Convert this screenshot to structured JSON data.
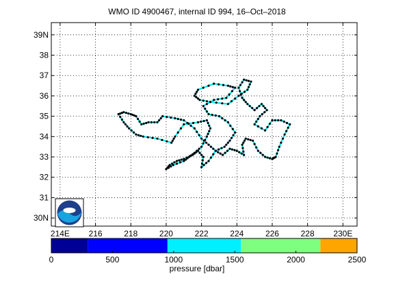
{
  "title": "WMO ID 4900467, internal ID 994, 16–Oct–2018",
  "map": {
    "lon_ticks": [
      "214E",
      "216",
      "218",
      "220",
      "222",
      "224",
      "226",
      "228",
      "230E"
    ],
    "lat_ticks": [
      "39N",
      "38",
      "37",
      "36",
      "35",
      "34",
      "33",
      "32",
      "31",
      "30N"
    ],
    "lon_range": [
      213.5,
      230.8
    ],
    "lat_range": [
      29.6,
      39.6
    ],
    "grid": true,
    "track_color": "#00e5ee",
    "point_color": "#000000",
    "logo": "noaa-logo"
  },
  "colorbar": {
    "label": "pressure [dbar]",
    "ticks": [
      "0",
      "500",
      "1000",
      "1500",
      "2000",
      "2500"
    ],
    "range": [
      0,
      2500
    ],
    "bands": [
      {
        "from": 0,
        "to": 300,
        "color": "#000096"
      },
      {
        "from": 300,
        "to": 950,
        "color": "#0000ff"
      },
      {
        "from": 950,
        "to": 1550,
        "color": "#00f0ff"
      },
      {
        "from": 1550,
        "to": 2200,
        "color": "#7fff7f"
      },
      {
        "from": 2200,
        "to": 2500,
        "color": "#ffa500"
      }
    ]
  },
  "chart_data": {
    "type": "scatter",
    "x_axis": "longitude (E)",
    "y_axis": "latitude (N)",
    "series": [
      {
        "points": [
          [
            218.7,
            34.0
          ],
          [
            219.5,
            33.9
          ],
          [
            220.3,
            33.7
          ],
          [
            220.5,
            34.0
          ],
          [
            221.0,
            34.6
          ],
          [
            221.8,
            34.7
          ],
          [
            222.3,
            34.8
          ],
          [
            222.5,
            34.4
          ],
          [
            222.3,
            34.0
          ],
          [
            222.0,
            33.5
          ],
          [
            221.6,
            33.2
          ],
          [
            221.3,
            33.0
          ],
          [
            221.0,
            32.8
          ],
          [
            220.4,
            32.6
          ],
          [
            220.0,
            32.4
          ],
          [
            220.2,
            32.6
          ],
          [
            220.6,
            32.8
          ],
          [
            221.0,
            32.9
          ],
          [
            221.5,
            33.1
          ],
          [
            221.8,
            33.3
          ],
          [
            222.1,
            33.0
          ],
          [
            222.0,
            32.5
          ],
          [
            222.4,
            32.8
          ],
          [
            222.8,
            33.3
          ],
          [
            223.3,
            33.5
          ],
          [
            223.6,
            33.8
          ],
          [
            223.9,
            34.2
          ],
          [
            223.5,
            34.7
          ],
          [
            223.0,
            35.0
          ],
          [
            222.4,
            35.1
          ],
          [
            222.1,
            35.5
          ],
          [
            222.7,
            35.8
          ],
          [
            223.4,
            35.9
          ],
          [
            223.9,
            36.4
          ],
          [
            223.5,
            36.5
          ],
          [
            222.7,
            36.6
          ],
          [
            221.8,
            36.3
          ],
          [
            221.6,
            36.0
          ],
          [
            221.9,
            35.8
          ],
          [
            222.5,
            35.7
          ],
          [
            223.5,
            35.6
          ],
          [
            224.1,
            36.0
          ],
          [
            224.6,
            36.3
          ],
          [
            224.8,
            36.7
          ],
          [
            224.4,
            36.8
          ],
          [
            224.1,
            36.4
          ],
          [
            224.3,
            35.9
          ],
          [
            224.6,
            35.6
          ],
          [
            225.0,
            35.3
          ],
          [
            225.4,
            35.6
          ],
          [
            225.7,
            35.3
          ],
          [
            225.3,
            35.0
          ],
          [
            225.0,
            34.6
          ],
          [
            225.6,
            34.3
          ],
          [
            226.0,
            34.8
          ],
          [
            226.5,
            34.8
          ],
          [
            227.0,
            34.6
          ],
          [
            226.7,
            34.1
          ],
          [
            226.4,
            33.5
          ],
          [
            226.2,
            33.0
          ],
          [
            226.0,
            32.9
          ],
          [
            225.6,
            33.0
          ],
          [
            225.2,
            33.3
          ],
          [
            224.9,
            33.8
          ],
          [
            224.5,
            33.9
          ],
          [
            224.3,
            33.6
          ],
          [
            224.4,
            33.1
          ],
          [
            224.0,
            33.3
          ],
          [
            223.6,
            33.4
          ],
          [
            223.2,
            33.1
          ],
          [
            222.8,
            33.3
          ],
          [
            222.4,
            33.6
          ],
          [
            222.0,
            33.9
          ],
          [
            221.6,
            34.4
          ],
          [
            221.0,
            34.8
          ],
          [
            220.5,
            34.9
          ],
          [
            219.8,
            35.0
          ],
          [
            219.5,
            34.7
          ],
          [
            219.0,
            34.7
          ],
          [
            218.6,
            34.6
          ],
          [
            218.3,
            35.0
          ],
          [
            218.0,
            35.1
          ],
          [
            217.6,
            35.2
          ],
          [
            217.3,
            35.1
          ],
          [
            217.6,
            34.7
          ],
          [
            217.9,
            34.4
          ],
          [
            218.3,
            34.1
          ],
          [
            218.7,
            34.0
          ]
        ]
      }
    ]
  }
}
